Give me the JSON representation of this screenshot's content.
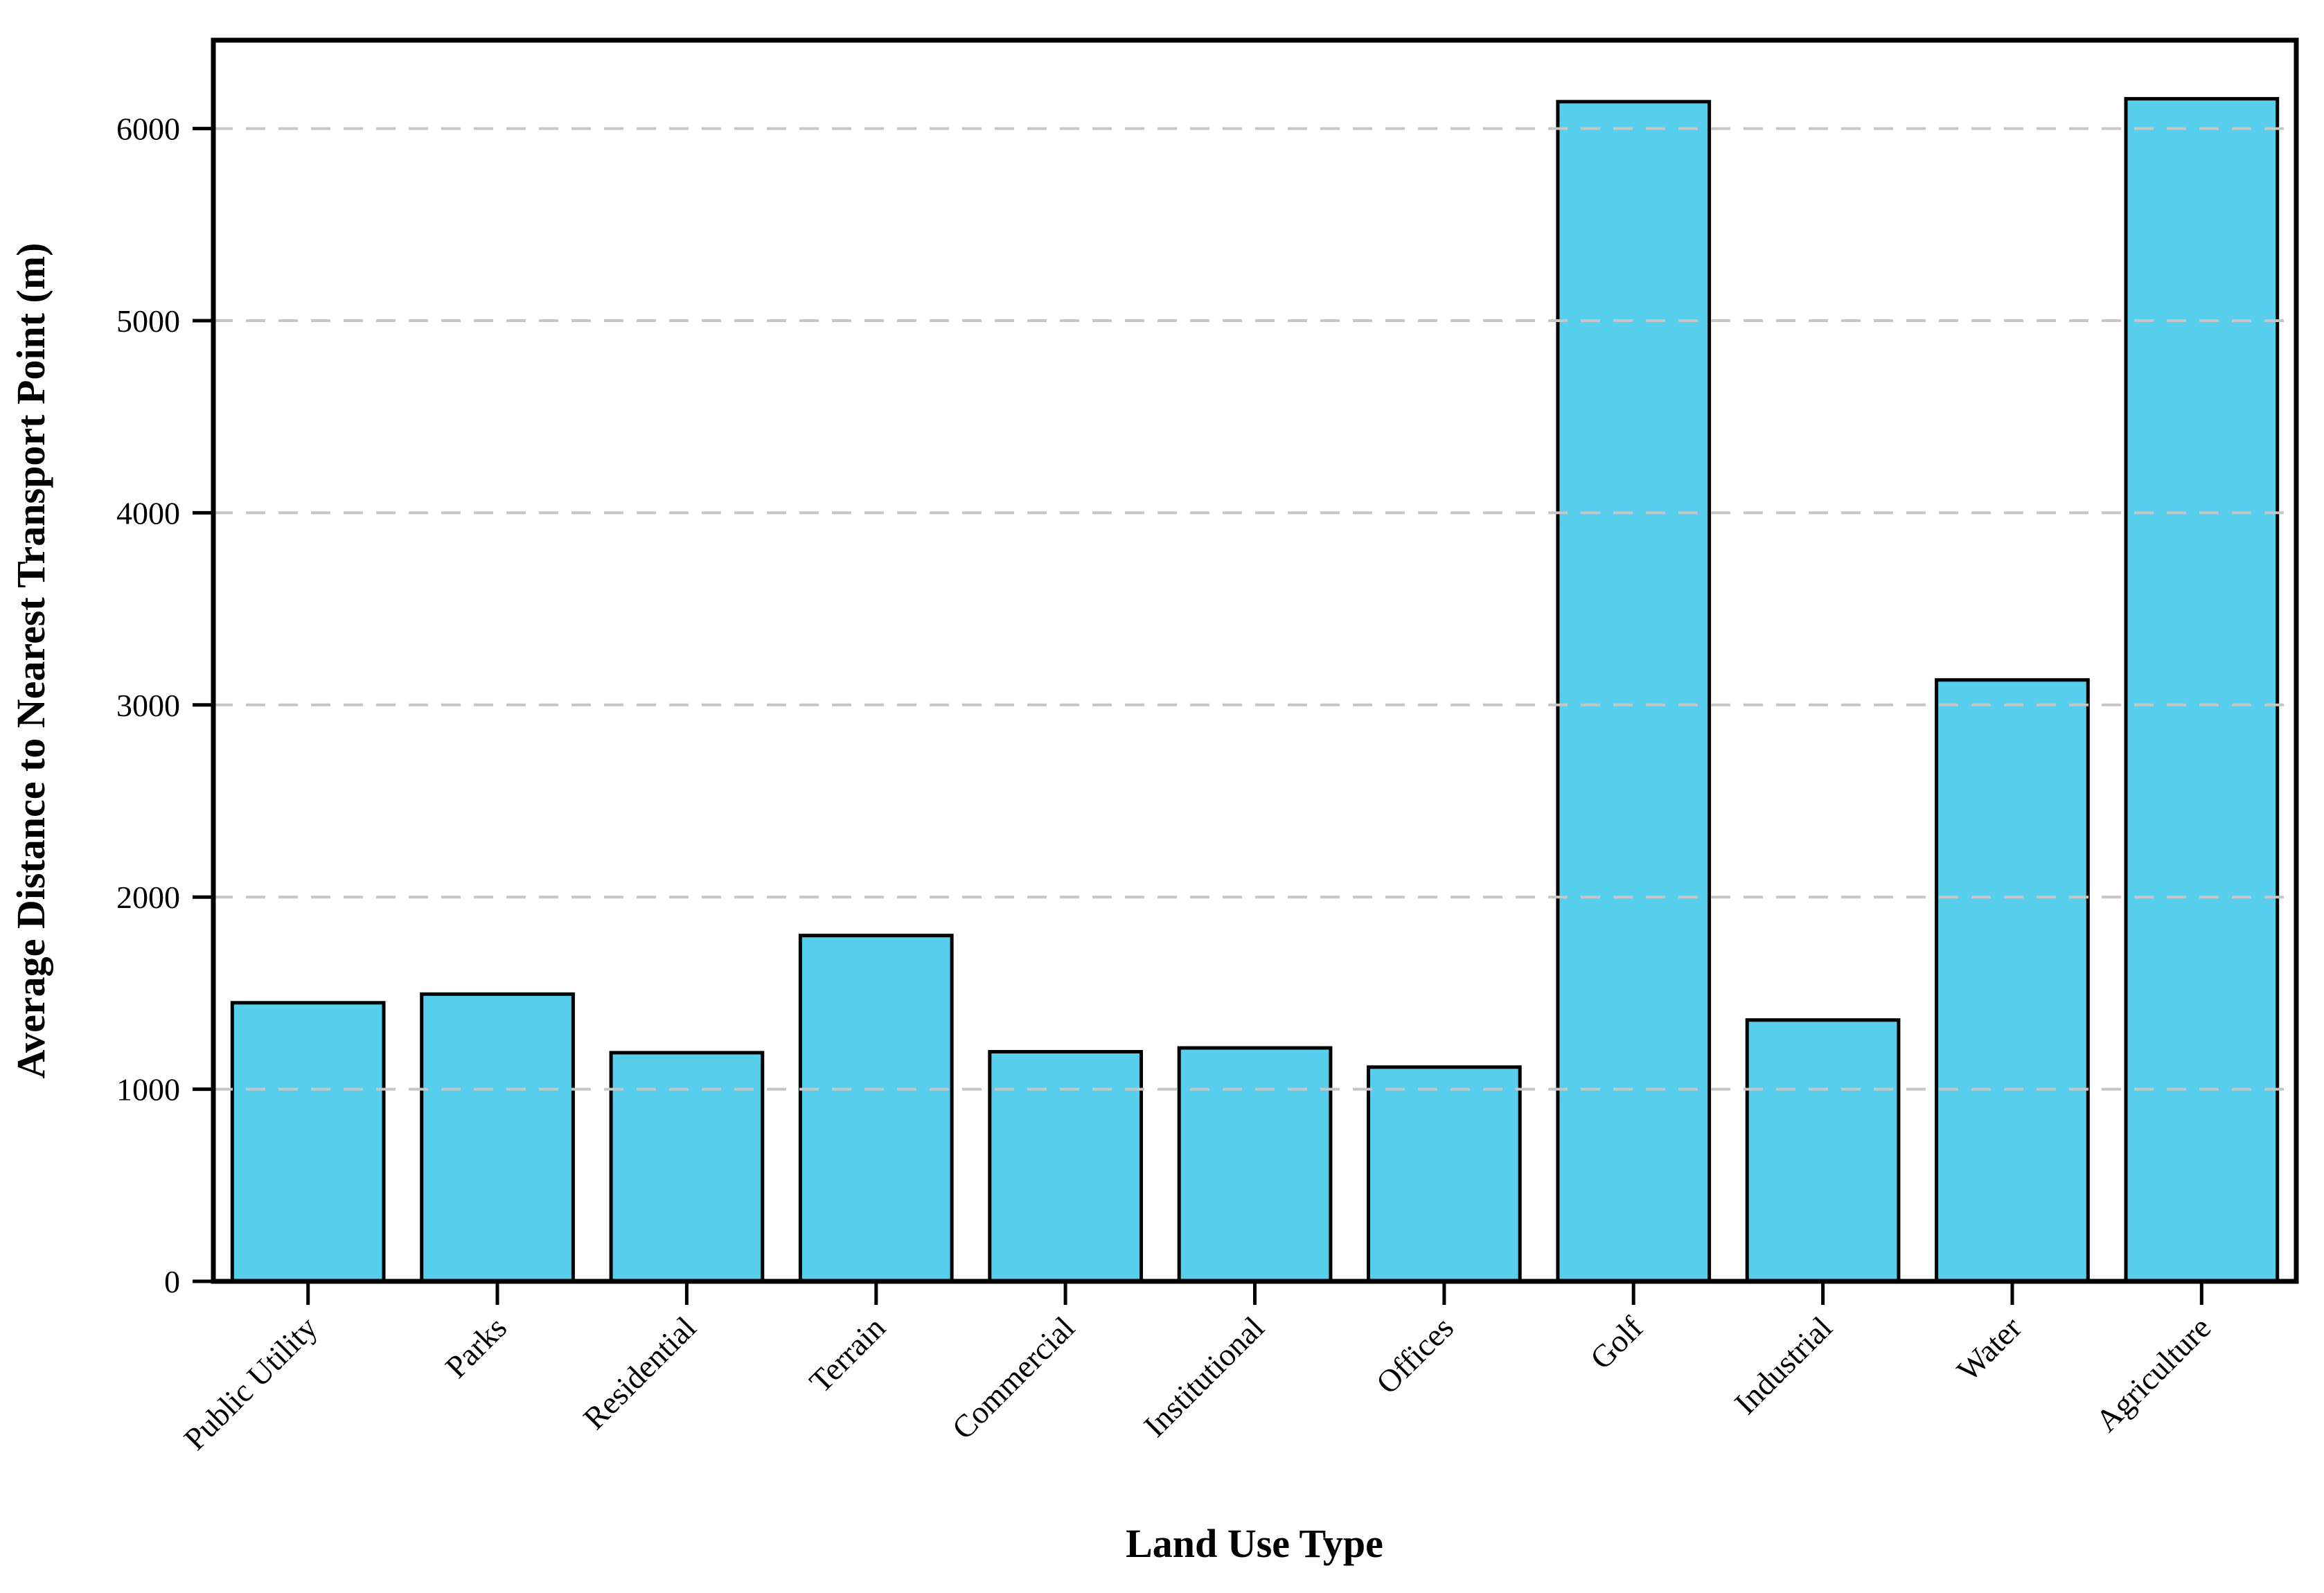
{
  "figure": {
    "background_color": "#FFFFFF"
  },
  "chart_data": {
    "type": "bar",
    "title": "",
    "xlabel": "Land Use Type",
    "ylabel": "Average Distance to Nearest Transport Point (m)",
    "categories": [
      "Public Utility",
      "Parks",
      "Residential",
      "Terrain",
      "Commercial",
      "Institutional",
      "Offices",
      "Golf",
      "Industrial",
      "Water",
      "Agriculture"
    ],
    "values": [
      1450,
      1495,
      1190,
      1800,
      1195,
      1215,
      1115,
      6140,
      1360,
      3130,
      6155
    ],
    "ytick_labels": [
      "0",
      "1000",
      "2000",
      "3000",
      "4000",
      "5000",
      "6000"
    ],
    "yticks": [
      0,
      1000,
      2000,
      3000,
      4000,
      5000,
      6000
    ],
    "ylim": [
      0,
      6460
    ],
    "grid": "horizontal-dashed",
    "grid_on_top_of_bars": true,
    "legend": null,
    "x_tick_rotation_deg": 45,
    "bar_fill_color": "#57CEEC",
    "bar_edge_color": "#000000",
    "gridline_color": "#C6C6C6",
    "spine_color": "#000000"
  }
}
